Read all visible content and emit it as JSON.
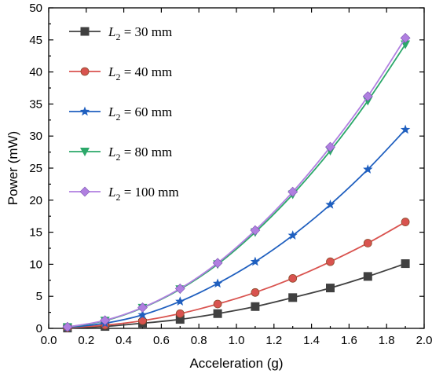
{
  "chart_data": {
    "type": "line",
    "title": "",
    "xlabel": "Acceleration (g)",
    "ylabel": "Power (mW)",
    "xlim": [
      0.0,
      2.0
    ],
    "ylim": [
      0,
      50
    ],
    "xticks": [
      "0.0",
      "0.2",
      "0.4",
      "0.6",
      "0.8",
      "1.0",
      "1.2",
      "1.4",
      "1.6",
      "1.8",
      "2.0"
    ],
    "yticks": [
      "0",
      "5",
      "10",
      "15",
      "20",
      "25",
      "30",
      "35",
      "40",
      "45",
      "50"
    ],
    "grid": false,
    "legend_position": "top-left",
    "x": [
      0.1,
      0.3,
      0.5,
      0.7,
      0.9,
      1.1,
      1.3,
      1.5,
      1.7,
      1.9
    ],
    "series": [
      {
        "name": "L2 = 30 mm",
        "legend_var": "L",
        "legend_sub": "2",
        "legend_rest": " = 30 mm",
        "color": "#404040",
        "marker": "square",
        "values": [
          0.05,
          0.3,
          0.8,
          1.4,
          2.3,
          3.4,
          4.8,
          6.3,
          8.1,
          10.1
        ]
      },
      {
        "name": "L2 = 40 mm",
        "legend_var": "L",
        "legend_sub": "2",
        "legend_rest": " = 40 mm",
        "color": "#d9534f",
        "marker": "circle",
        "values": [
          0.1,
          0.5,
          1.2,
          2.3,
          3.8,
          5.6,
          7.8,
          10.4,
          13.3,
          16.6
        ]
      },
      {
        "name": "L2 = 60 mm",
        "legend_var": "L",
        "legend_sub": "2",
        "legend_rest": " = 60 mm",
        "color": "#1f5fbf",
        "marker": "star",
        "values": [
          0.15,
          0.8,
          2.1,
          4.2,
          7.0,
          10.4,
          14.5,
          19.3,
          24.8,
          31.0
        ]
      },
      {
        "name": "L2 = 80 mm",
        "legend_var": "L",
        "legend_sub": "2",
        "legend_rest": " = 80 mm",
        "color": "#2ca86a",
        "marker": "triangle-down",
        "values": [
          0.2,
          1.2,
          3.2,
          6.1,
          10.0,
          15.0,
          20.9,
          27.7,
          35.5,
          44.3
        ]
      },
      {
        "name": "L2 = 100 mm",
        "legend_var": "L",
        "legend_sub": "2",
        "legend_rest": " = 100 mm",
        "color": "#b07fe0",
        "marker": "diamond",
        "values": [
          0.22,
          1.25,
          3.25,
          6.2,
          10.2,
          15.3,
          21.3,
          28.3,
          36.2,
          45.3
        ]
      }
    ]
  }
}
